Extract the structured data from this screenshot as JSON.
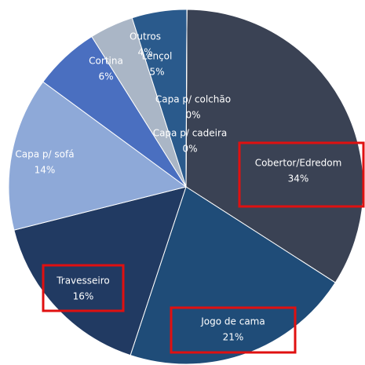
{
  "chart_data": {
    "type": "pie",
    "categories": [
      "Cobertor/Edredom",
      "Jogo de cama",
      "Travesseiro",
      "Capa p/ sofá",
      "Cortina",
      "Outros",
      "Lençol",
      "Capa p/ colchão",
      "Capa p/ cadeira"
    ],
    "values": [
      34,
      21,
      16,
      14,
      6,
      4,
      5,
      0,
      0
    ],
    "value_labels": [
      "34%",
      "21%",
      "16%",
      "14%",
      "6%",
      "4%",
      "5%",
      "0%",
      "0%"
    ],
    "colors": [
      "#3a4254",
      "#1f4c78",
      "#213a62",
      "#8ea9d8",
      "#4a6fc0",
      "#aab6c6",
      "#2a5a8c",
      "#5a6e86",
      "#9aa6b4"
    ]
  }
}
